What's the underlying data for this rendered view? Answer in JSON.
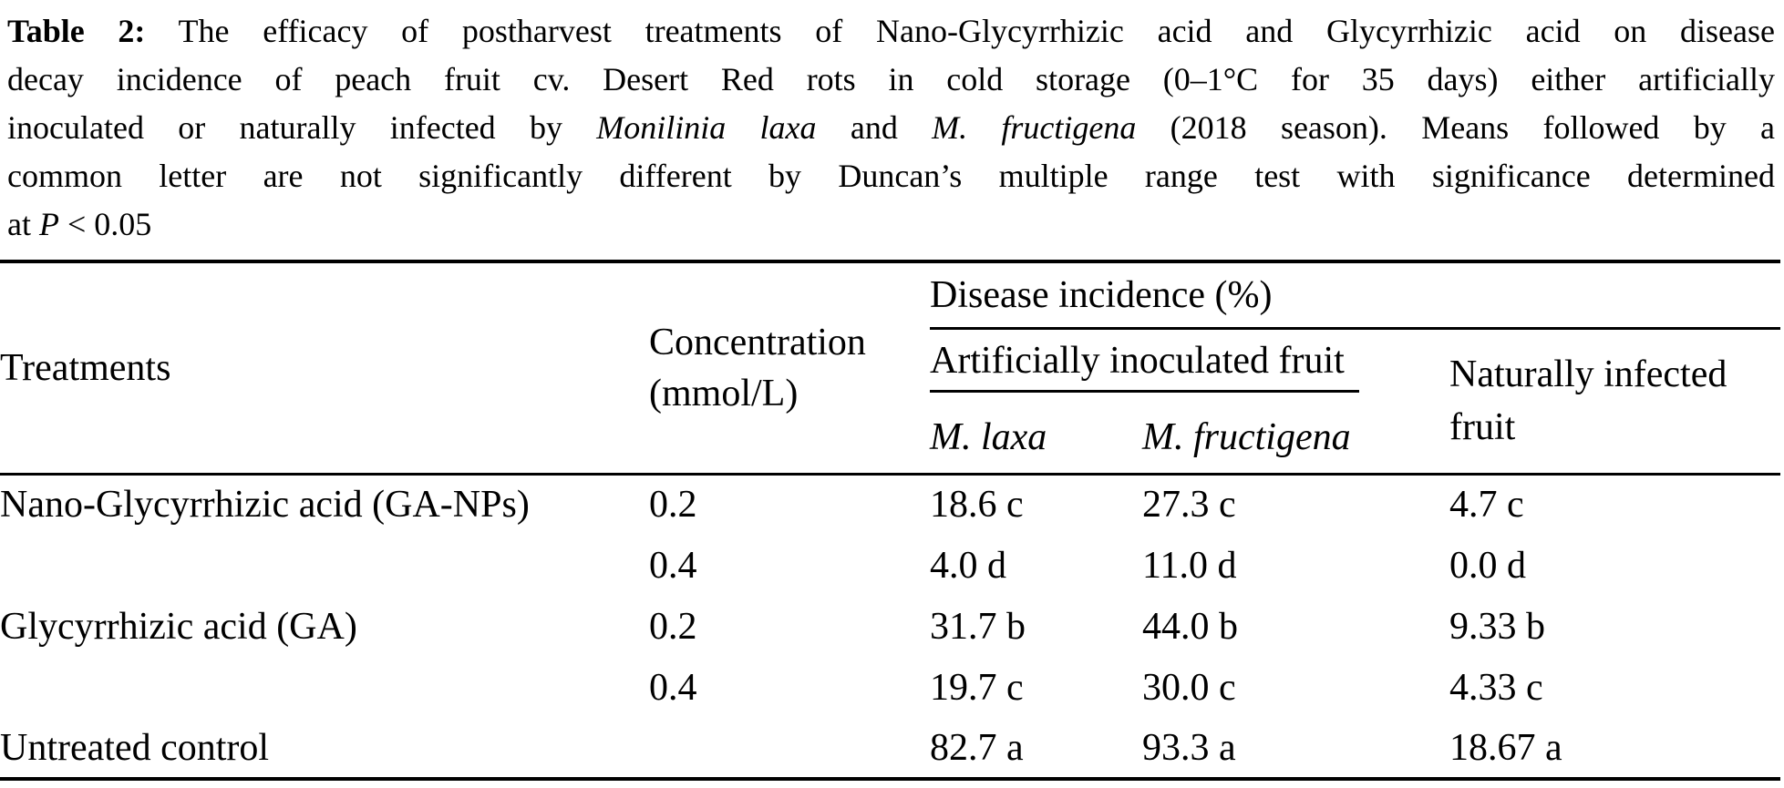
{
  "caption": {
    "lines": [
      {
        "segments": [
          {
            "text": "Table 2:",
            "style": "bold"
          },
          {
            "text": " The efficacy of postharvest treatments of Nano-Glycyrrhizic acid and Glycyrrhizic acid on disease",
            "style": "normal"
          }
        ]
      },
      {
        "segments": [
          {
            "text": "decay incidence of peach fruit cv. Desert Red rots in cold storage (0–1°C for 35 days) either artificially",
            "style": "normal"
          }
        ]
      },
      {
        "segments": [
          {
            "text": "inoculated or naturally infected by ",
            "style": "normal"
          },
          {
            "text": "Monilinia laxa",
            "style": "italic"
          },
          {
            "text": " and ",
            "style": "normal"
          },
          {
            "text": "M. fructigena",
            "style": "italic"
          },
          {
            "text": " (2018 season). Means followed by a",
            "style": "normal"
          }
        ]
      },
      {
        "segments": [
          {
            "text": "common letter are not significantly different by Duncan’s multiple range test with significance determined",
            "style": "normal"
          }
        ]
      },
      {
        "segments": [
          {
            "text": "at ",
            "style": "normal"
          },
          {
            "text": "P",
            "style": "italic"
          },
          {
            "text": " < 0.05",
            "style": "normal"
          }
        ]
      }
    ]
  },
  "table": {
    "header": {
      "treatments": "Treatments",
      "concentration_line1": "Concentration",
      "concentration_line2": "(mmol/L)",
      "disease_incidence": "Disease incidence (%)",
      "artificially_inoculated": "Artificially inoculated fruit",
      "m_laxa": "M. laxa",
      "m_fructigena": "M. fructigena",
      "naturally_line1": "Naturally infected",
      "naturally_line2": "fruit"
    },
    "rows": [
      {
        "treatment": "Nano-Glycyrrhizic acid (GA-NPs)",
        "concentration": "0.2",
        "m_laxa": "18.6 c",
        "m_fructigena": "27.3 c",
        "naturally": "4.7 c"
      },
      {
        "treatment": "",
        "concentration": "0.4",
        "m_laxa": "4.0 d",
        "m_fructigena": "11.0 d",
        "naturally": "0.0 d"
      },
      {
        "treatment": "Glycyrrhizic acid (GA)",
        "concentration": "0.2",
        "m_laxa": "31.7 b",
        "m_fructigena": "44.0 b",
        "naturally": "9.33 b"
      },
      {
        "treatment": "",
        "concentration": "0.4",
        "m_laxa": "19.7 c",
        "m_fructigena": "30.0 c",
        "naturally": "4.33 c"
      },
      {
        "treatment": "Untreated control",
        "concentration": "",
        "m_laxa": "82.7 a",
        "m_fructigena": "93.3 a",
        "naturally": "18.67 a"
      }
    ]
  },
  "colors": {
    "text": "#000000",
    "background": "#ffffff",
    "rule": "#000000"
  }
}
